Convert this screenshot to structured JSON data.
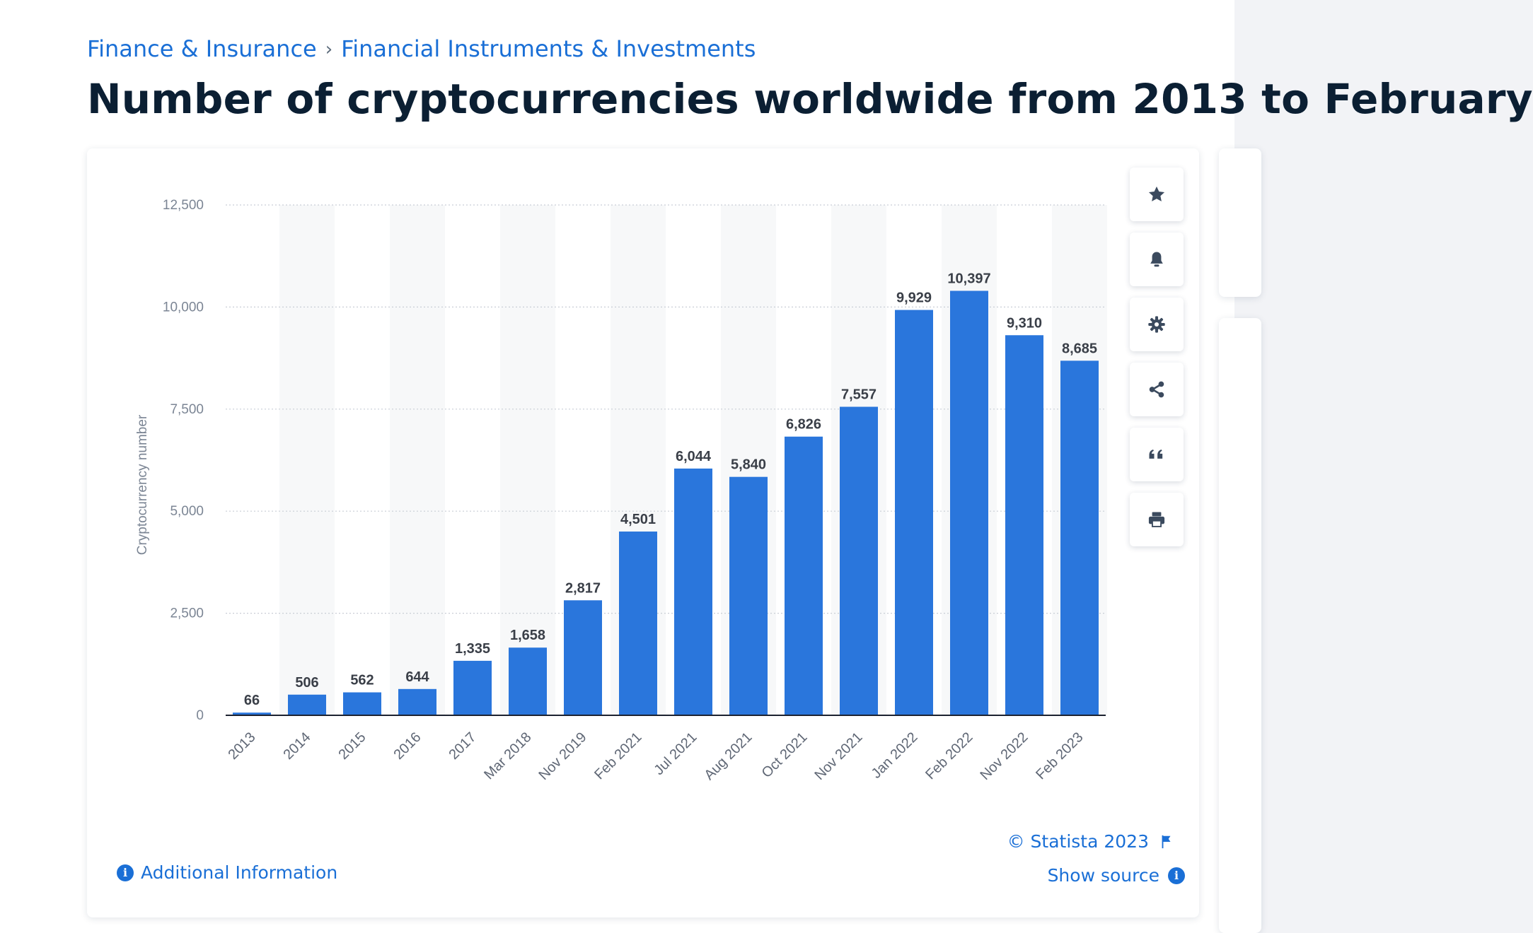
{
  "breadcrumb": {
    "items": [
      "Finance & Insurance",
      "Financial Instruments & Investments"
    ],
    "separator": "›"
  },
  "page_title": "Number of cryptocurrencies worldwide from 2013 to February",
  "toolbar": {
    "icons": [
      "star-icon",
      "bell-icon",
      "gear-icon",
      "share-icon",
      "quote-icon",
      "print-icon"
    ]
  },
  "footer": {
    "additional_info": "Additional Information",
    "copyright": "© Statista 2023",
    "show_source": "Show source"
  },
  "colors": {
    "bar": "#2a76dc",
    "link": "#1a6fd6",
    "title": "#0b1f33"
  },
  "chart_data": {
    "type": "bar",
    "categories": [
      "2013",
      "2014",
      "2015",
      "2016",
      "2017",
      "Mar 2018",
      "Nov 2019",
      "Feb 2021",
      "Jul 2021",
      "Aug 2021",
      "Oct 2021",
      "Nov 2021",
      "Jan 2022",
      "Feb 2022",
      "Nov 2022",
      "Feb 2023"
    ],
    "values": [
      66,
      506,
      562,
      644,
      1335,
      1658,
      2817,
      4501,
      6044,
      5840,
      6826,
      7557,
      9929,
      10397,
      9310,
      8685
    ],
    "data_labels": [
      "66",
      "506",
      "562",
      "644",
      "1,335",
      "1,658",
      "2,817",
      "4,501",
      "6,044",
      "5,840",
      "6,826",
      "7,557",
      "9,929",
      "10,397",
      "9,310",
      "8,685"
    ],
    "ylabel": "Cryptocurrency number",
    "ylim": [
      0,
      12500
    ],
    "yticks": [
      0,
      2500,
      5000,
      7500,
      10000,
      12500
    ],
    "ytick_labels": [
      "0",
      "2,500",
      "5,000",
      "7,500",
      "10,000",
      "12,500"
    ],
    "grid": true
  }
}
